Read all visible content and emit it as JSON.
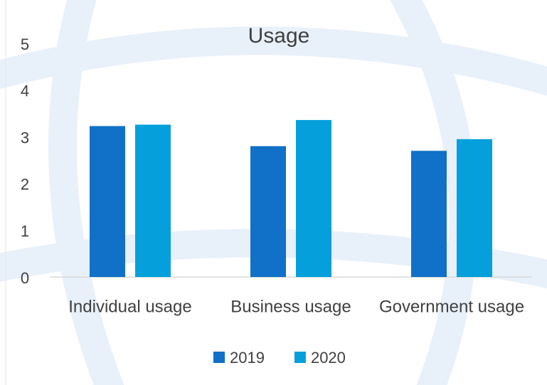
{
  "chart_data": {
    "type": "bar",
    "title": "Usage",
    "categories": [
      "Individual usage",
      "Business usage",
      "Government usage"
    ],
    "series": [
      {
        "name": "2019",
        "color": "#1170c8",
        "values": [
          3.23,
          2.8,
          2.7
        ]
      },
      {
        "name": "2020",
        "color": "#05a0db",
        "values": [
          3.26,
          3.36,
          2.95
        ]
      }
    ],
    "ylim": [
      0,
      5
    ],
    "yticks": [
      0,
      1,
      2,
      3,
      4,
      5
    ],
    "grid": false,
    "legend": "bottom"
  }
}
